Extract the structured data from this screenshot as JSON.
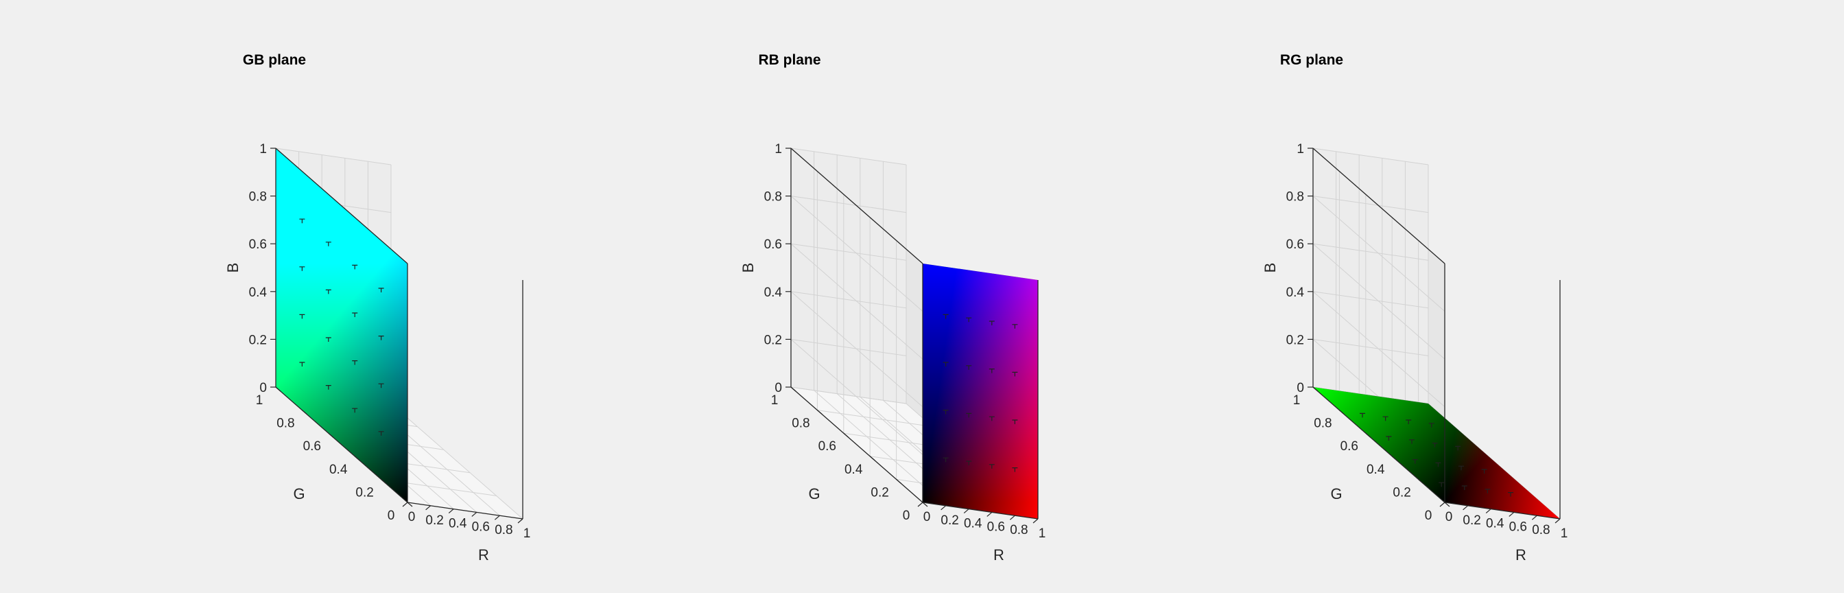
{
  "chart_data": [
    {
      "type": "surface",
      "title": "GB plane",
      "plane": "GB",
      "fixed": {
        "axis": "R",
        "value": 0
      },
      "xlabel": "R",
      "ylabel": "G",
      "zlabel": "B",
      "xlim": [
        0,
        1
      ],
      "ylim": [
        0,
        1
      ],
      "zlim": [
        0,
        1
      ],
      "xticks": [
        "0",
        "0.2",
        "0.4",
        "0.6",
        "0.8",
        "1"
      ],
      "yticks": [
        "0",
        "0.2",
        "0.4",
        "0.6",
        "0.8",
        "1"
      ],
      "zticks": [
        "0",
        "0.2",
        "0.4",
        "0.6",
        "0.8",
        "1"
      ],
      "grid": true,
      "color_corners": {
        "origin": "#000000",
        "axis1_max": "#00ff00",
        "axis2_max": "#0000ff",
        "both_max": "#00ffff"
      }
    },
    {
      "type": "surface",
      "title": "RB plane",
      "plane": "RB",
      "fixed": {
        "axis": "G",
        "value": 0
      },
      "xlabel": "R",
      "ylabel": "G",
      "zlabel": "B",
      "xlim": [
        0,
        1
      ],
      "ylim": [
        0,
        1
      ],
      "zlim": [
        0,
        1
      ],
      "xticks": [
        "0",
        "0.2",
        "0.4",
        "0.6",
        "0.8",
        "1"
      ],
      "yticks": [
        "0",
        "0.2",
        "0.4",
        "0.6",
        "0.8",
        "1"
      ],
      "zticks": [
        "0",
        "0.2",
        "0.4",
        "0.6",
        "0.8",
        "1"
      ],
      "grid": true,
      "color_corners": {
        "origin": "#000000",
        "axis1_max": "#ff0000",
        "axis2_max": "#0000ff",
        "both_max": "#ff00ff"
      }
    },
    {
      "type": "surface",
      "title": "RG plane",
      "plane": "RG",
      "fixed": {
        "axis": "B",
        "value": 0
      },
      "xlabel": "R",
      "ylabel": "G",
      "zlabel": "B",
      "xlim": [
        0,
        1
      ],
      "ylim": [
        0,
        1
      ],
      "zlim": [
        0,
        1
      ],
      "xticks": [
        "0",
        "0.2",
        "0.4",
        "0.6",
        "0.8",
        "1"
      ],
      "yticks": [
        "0",
        "0.2",
        "0.4",
        "0.6",
        "0.8",
        "1"
      ],
      "zticks": [
        "0",
        "0.2",
        "0.4",
        "0.6",
        "0.8",
        "1"
      ],
      "grid": true,
      "color_corners": {
        "origin": "#000000",
        "axis1_max": "#ff0000",
        "axis2_max": "#00ff00",
        "both_max": "#ffff00"
      }
    }
  ],
  "colors": {
    "background": "#f0f0f0",
    "pane": "#ebebeb",
    "grid": "#d2d2d2",
    "axis": "#262626"
  }
}
